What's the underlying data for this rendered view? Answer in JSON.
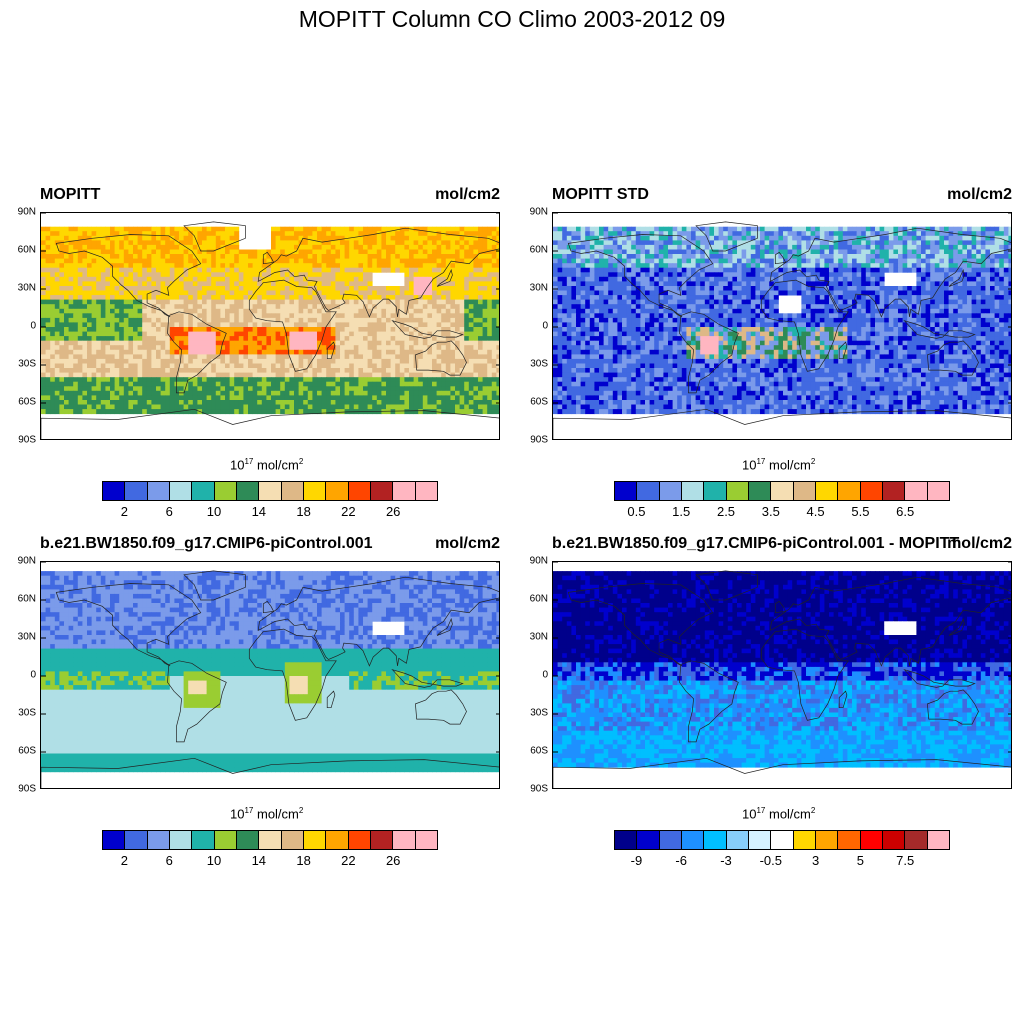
{
  "title": "MOPITT Column CO Climo 2003-2012 09",
  "lat_labels": [
    "90N",
    "60N",
    "30N",
    "0",
    "30S",
    "60S",
    "90S"
  ],
  "panels": [
    {
      "id": "mopitt",
      "title": "MOPITT",
      "units": "mol/cm2",
      "colorbar_units_base": "10",
      "colorbar_units_exp": "17",
      "colorbar_units_text": " mol/cm",
      "colorbar_units_sq": "2",
      "colorbar_colors": [
        "#0000cd",
        "#4169e1",
        "#7b9bea",
        "#b0dfe6",
        "#20b2aa",
        "#9acd32",
        "#2e8b57",
        "#f5deb3",
        "#deb887",
        "#ffd700",
        "#ffa500",
        "#ff4500",
        "#b22222",
        "#ffb6c1",
        "#ffb6c1"
      ],
      "colorbar_labels": [
        "2",
        "6",
        "10",
        "14",
        "18",
        "22",
        "26"
      ]
    },
    {
      "id": "mopitt-std",
      "title": "MOPITT STD",
      "units": "mol/cm2",
      "colorbar_units_base": "10",
      "colorbar_units_exp": "17",
      "colorbar_units_text": " mol/cm",
      "colorbar_units_sq": "2",
      "colorbar_colors": [
        "#0000cd",
        "#4169e1",
        "#7b9bea",
        "#b0dfe6",
        "#20b2aa",
        "#9acd32",
        "#2e8b57",
        "#f5deb3",
        "#deb887",
        "#ffd700",
        "#ffa500",
        "#ff4500",
        "#b22222",
        "#ffb6c1",
        "#ffb6c1"
      ],
      "colorbar_labels": [
        "0.5",
        "1.5",
        "2.5",
        "3.5",
        "4.5",
        "5.5",
        "6.5"
      ]
    },
    {
      "id": "model",
      "title": "b.e21.BW1850.f09_g17.CMIP6-piControl.001",
      "units": "mol/cm2",
      "colorbar_units_base": "10",
      "colorbar_units_exp": "17",
      "colorbar_units_text": " mol/cm",
      "colorbar_units_sq": "2",
      "colorbar_colors": [
        "#0000cd",
        "#4169e1",
        "#7b9bea",
        "#b0dfe6",
        "#20b2aa",
        "#9acd32",
        "#2e8b57",
        "#f5deb3",
        "#deb887",
        "#ffd700",
        "#ffa500",
        "#ff4500",
        "#b22222",
        "#ffb6c1",
        "#ffb6c1"
      ],
      "colorbar_labels": [
        "2",
        "6",
        "10",
        "14",
        "18",
        "22",
        "26"
      ]
    },
    {
      "id": "diff",
      "title": "b.e21.BW1850.f09_g17.CMIP6-piControl.001 - MOPITT",
      "units": "mol/cm2",
      "colorbar_units_base": "10",
      "colorbar_units_exp": "17",
      "colorbar_units_text": " mol/cm",
      "colorbar_units_sq": "2",
      "colorbar_colors": [
        "#00008b",
        "#0000cd",
        "#4169e1",
        "#1e90ff",
        "#00bfff",
        "#87cefa",
        "#d6f3ff",
        "#ffffff",
        "#ffd700",
        "#ffa500",
        "#ff6600",
        "#ff0000",
        "#cc0000",
        "#a52a2a",
        "#ffb6c1"
      ],
      "colorbar_labels": [
        "-9",
        "-6",
        "-3",
        "-0.5",
        "3",
        "5",
        "7.5"
      ]
    }
  ]
}
